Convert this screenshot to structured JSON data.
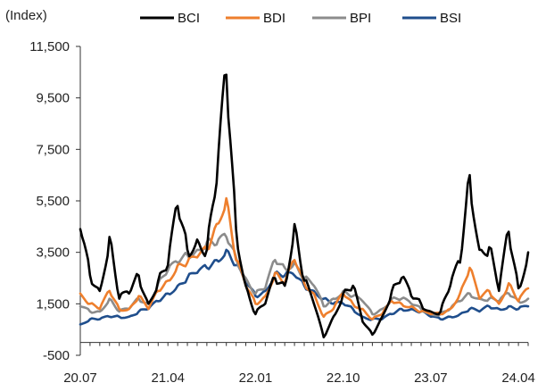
{
  "chart_data": {
    "type": "line",
    "ylabel": "(Index)",
    "ylim": [
      -500,
      11500
    ],
    "yticks": [
      -500,
      1500,
      3500,
      5500,
      7500,
      9500,
      11500
    ],
    "ytick_labels": [
      "-500",
      "1,500",
      "3,500",
      "5,500",
      "7,500",
      "9,500",
      "11,500"
    ],
    "xlim": [
      "2020-07",
      "2024-05"
    ],
    "xticks": [
      "20.07",
      "21.04",
      "22.01",
      "22.10",
      "23.07",
      "24.04"
    ],
    "legend_position": "top",
    "grid": false,
    "series": [
      {
        "name": "BCI",
        "color": "#000000",
        "x": [
          "2020-07",
          "2020-08",
          "2020-09",
          "2020-10",
          "2020-11",
          "2020-12",
          "2021-01",
          "2021-02",
          "2021-03",
          "2021-04",
          "2021-05",
          "2021-06",
          "2021-07",
          "2021-08",
          "2021-09",
          "2021-10",
          "2021-11",
          "2021-12",
          "2022-01",
          "2022-02",
          "2022-03",
          "2022-04",
          "2022-05",
          "2022-06",
          "2022-07",
          "2022-08",
          "2022-09",
          "2022-10",
          "2022-11",
          "2022-12",
          "2023-01",
          "2023-02",
          "2023-03",
          "2023-04",
          "2023-05",
          "2023-06",
          "2023-07",
          "2023-08",
          "2023-09",
          "2023-10",
          "2023-11",
          "2023-12",
          "2024-01",
          "2024-02",
          "2024-03",
          "2024-04",
          "2024-05"
        ],
        "y": [
          4400,
          2600,
          2000,
          4100,
          1700,
          1900,
          2600,
          1500,
          2400,
          3000,
          5300,
          3600,
          4000,
          3600,
          6200,
          10400,
          4400,
          2200,
          1100,
          1500,
          2500,
          2200,
          4600,
          2400,
          1500,
          200,
          1000,
          1900,
          2200,
          800,
          300,
          1000,
          2000,
          2500,
          1800,
          1500,
          1200,
          1200,
          2200,
          3100,
          6500,
          3600,
          3700,
          2000,
          4300,
          2100,
          3500
        ]
      },
      {
        "name": "BDI",
        "color": "#ee7f2d",
        "x": [
          "2020-07",
          "2020-08",
          "2020-09",
          "2020-10",
          "2020-11",
          "2020-12",
          "2021-01",
          "2021-02",
          "2021-03",
          "2021-04",
          "2021-05",
          "2021-06",
          "2021-07",
          "2021-08",
          "2021-09",
          "2021-10",
          "2021-11",
          "2021-12",
          "2022-01",
          "2022-02",
          "2022-03",
          "2022-04",
          "2022-05",
          "2022-06",
          "2022-07",
          "2022-08",
          "2022-09",
          "2022-10",
          "2022-11",
          "2022-12",
          "2023-01",
          "2023-02",
          "2023-03",
          "2023-04",
          "2023-05",
          "2023-06",
          "2023-07",
          "2023-08",
          "2023-09",
          "2023-10",
          "2023-11",
          "2023-12",
          "2024-01",
          "2024-02",
          "2024-03",
          "2024-04",
          "2024-05"
        ],
        "y": [
          1900,
          1500,
          1300,
          2000,
          1300,
          1300,
          1800,
          1300,
          2000,
          2400,
          3000,
          3100,
          3300,
          3600,
          4600,
          5600,
          3200,
          2200,
          1500,
          1800,
          2700,
          2300,
          3200,
          2300,
          1900,
          1000,
          1300,
          1900,
          1500,
          1300,
          900,
          1100,
          1600,
          1500,
          1400,
          1200,
          1100,
          1100,
          1300,
          1900,
          2900,
          1700,
          2000,
          1500,
          2300,
          1600,
          2100
        ]
      },
      {
        "name": "BPI",
        "color": "#8c8c8c",
        "x": [
          "2020-07",
          "2020-08",
          "2020-09",
          "2020-10",
          "2020-11",
          "2020-12",
          "2021-01",
          "2021-02",
          "2021-03",
          "2021-04",
          "2021-05",
          "2021-06",
          "2021-07",
          "2021-08",
          "2021-09",
          "2021-10",
          "2021-11",
          "2021-12",
          "2022-01",
          "2022-02",
          "2022-03",
          "2022-04",
          "2022-05",
          "2022-06",
          "2022-07",
          "2022-08",
          "2022-09",
          "2022-10",
          "2022-11",
          "2022-12",
          "2023-01",
          "2023-02",
          "2023-03",
          "2023-04",
          "2023-05",
          "2023-06",
          "2023-07",
          "2023-08",
          "2023-09",
          "2023-10",
          "2023-11",
          "2023-12",
          "2024-01",
          "2024-02",
          "2024-03",
          "2024-04",
          "2024-05"
        ],
        "y": [
          1400,
          1200,
          1200,
          1700,
          1200,
          1300,
          1700,
          1500,
          2300,
          2800,
          3100,
          3400,
          3600,
          3900,
          3800,
          4100,
          3300,
          2500,
          1900,
          2100,
          3200,
          2900,
          3100,
          2500,
          2200,
          1400,
          1700,
          2000,
          1800,
          1600,
          1100,
          1300,
          1700,
          1700,
          1500,
          1300,
          1100,
          1100,
          1300,
          1600,
          1900,
          1700,
          1700,
          1600,
          1900,
          1600,
          1700
        ]
      },
      {
        "name": "BSI",
        "color": "#1f4e8c",
        "x": [
          "2020-07",
          "2020-08",
          "2020-09",
          "2020-10",
          "2020-11",
          "2020-12",
          "2021-01",
          "2021-02",
          "2021-03",
          "2021-04",
          "2021-05",
          "2021-06",
          "2021-07",
          "2021-08",
          "2021-09",
          "2021-10",
          "2021-11",
          "2021-12",
          "2022-01",
          "2022-02",
          "2022-03",
          "2022-04",
          "2022-05",
          "2022-06",
          "2022-07",
          "2022-08",
          "2022-09",
          "2022-10",
          "2022-11",
          "2022-12",
          "2023-01",
          "2023-02",
          "2023-03",
          "2023-04",
          "2023-05",
          "2023-06",
          "2023-07",
          "2023-08",
          "2023-09",
          "2023-10",
          "2023-11",
          "2023-12",
          "2024-01",
          "2024-02",
          "2024-03",
          "2024-04",
          "2024-05"
        ],
        "y": [
          700,
          900,
          900,
          1000,
          1000,
          1000,
          1200,
          1300,
          1600,
          1900,
          2200,
          2500,
          2700,
          2900,
          3200,
          3600,
          3000,
          2300,
          1800,
          2000,
          2700,
          2600,
          2600,
          2200,
          2000,
          1700,
          1500,
          1500,
          1300,
          1000,
          900,
          900,
          1100,
          1300,
          1300,
          1200,
          1000,
          900,
          1000,
          1100,
          1300,
          1200,
          1400,
          1300,
          1400,
          1300,
          1400
        ]
      }
    ]
  }
}
